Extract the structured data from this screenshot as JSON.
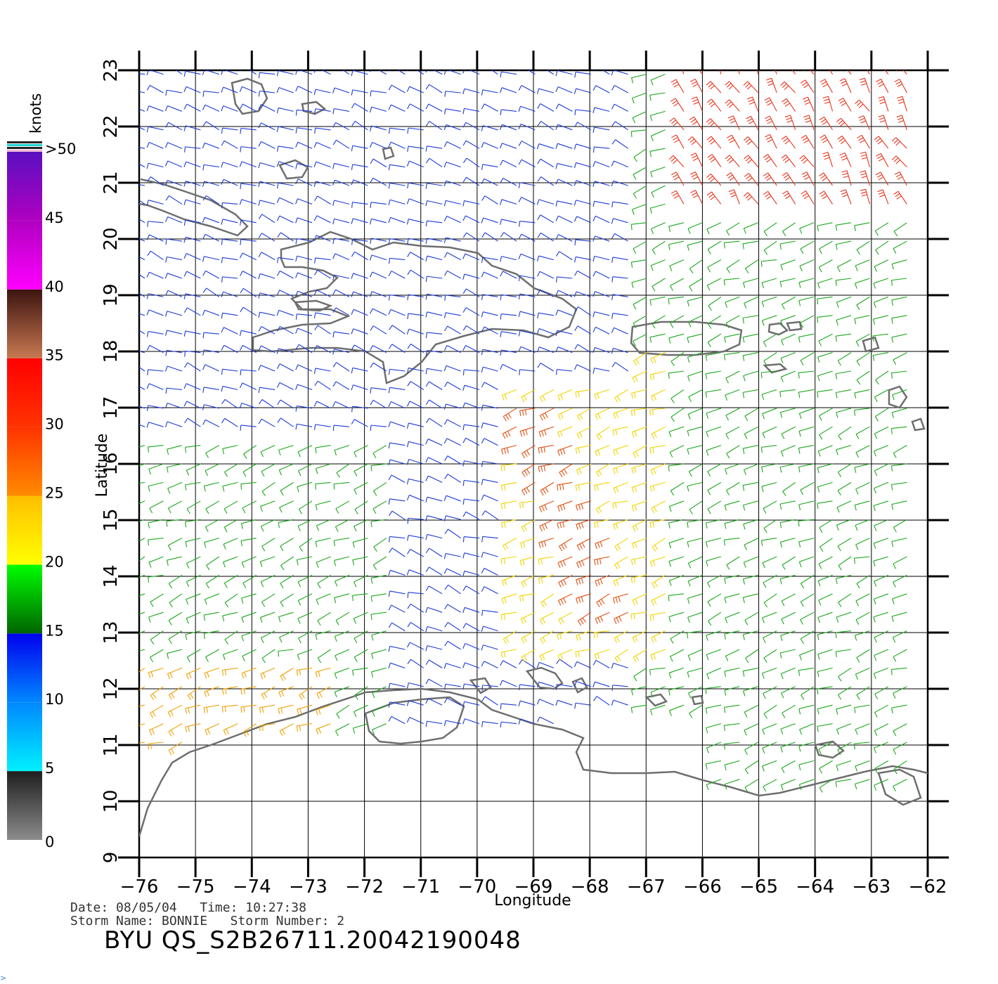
{
  "map": {
    "x_axis": {
      "title": "Longitude",
      "range": [
        -76,
        -62
      ],
      "ticks": [
        "−76",
        "−75",
        "−74",
        "−73",
        "−72",
        "−71",
        "−70",
        "−69",
        "−68",
        "−67",
        "−66",
        "−65",
        "−64",
        "−63",
        "−62"
      ]
    },
    "y_axis": {
      "title": "Latitude",
      "range": [
        9,
        23
      ],
      "ticks": [
        "9",
        "10",
        "11",
        "12",
        "13",
        "14",
        "15",
        "16",
        "17",
        "18",
        "19",
        "20",
        "21",
        "22",
        "23"
      ]
    },
    "grid": true,
    "layers": [
      "coastline",
      "wind-barbs"
    ]
  },
  "colorbar": {
    "title": "knots",
    "labels": [
      "0",
      "5",
      "10",
      "15",
      "20",
      "25",
      "30",
      "35",
      "40",
      "45",
      ">50"
    ],
    "bands": [
      {
        "from": 0,
        "to": 5,
        "colors": [
          "#8c8c8c",
          "#1e1e1e"
        ]
      },
      {
        "from": 5,
        "to": 10,
        "colors": [
          "#00f0ff",
          "#0088ff"
        ]
      },
      {
        "from": 10,
        "to": 15,
        "colors": [
          "#0088ff",
          "#0000ee"
        ]
      },
      {
        "from": 15,
        "to": 20,
        "colors": [
          "#006400",
          "#00ff00"
        ]
      },
      {
        "from": 20,
        "to": 25,
        "colors": [
          "#ffff00",
          "#ffbf00"
        ]
      },
      {
        "from": 25,
        "to": 30,
        "colors": [
          "#ff8c00",
          "#ff3300"
        ]
      },
      {
        "from": 30,
        "to": 35,
        "colors": [
          "#ff3300",
          "#ff0000"
        ]
      },
      {
        "from": 35,
        "to": 40,
        "colors": [
          "#c87850",
          "#3c1410"
        ]
      },
      {
        "from": 40,
        "to": 45,
        "colors": [
          "#ff00ff",
          "#b000c0"
        ]
      },
      {
        "from": 45,
        "to": 50,
        "colors": [
          "#b000c0",
          "#5a10c0"
        ]
      }
    ]
  },
  "wind_fields": [
    {
      "region": "north-west",
      "speed_band": "10-15",
      "color": "#1c39d6"
    },
    {
      "region": "north-east",
      "speed_band": "25-35",
      "color": "#e8321a"
    },
    {
      "region": "east",
      "speed_band": "15-20",
      "color": "#1aa81a"
    },
    {
      "region": "central",
      "speed_band": "20-25",
      "color": "#f2d400"
    },
    {
      "region": "storm-band",
      "speed_band": "25-35",
      "color": "#e05010"
    },
    {
      "region": "south-west",
      "speed_band": "15-20",
      "color": "#1aa81a"
    },
    {
      "region": "south-west-corner",
      "speed_band": "25-30",
      "color": "#f0a000"
    }
  ],
  "footer": {
    "date_line": "Date: 08/05/04   Time: 10:27:38",
    "storm_line": "Storm Name: BONNIE   Storm Number: 2",
    "product_id": "BYU QS_S2B26711.20042190048"
  }
}
